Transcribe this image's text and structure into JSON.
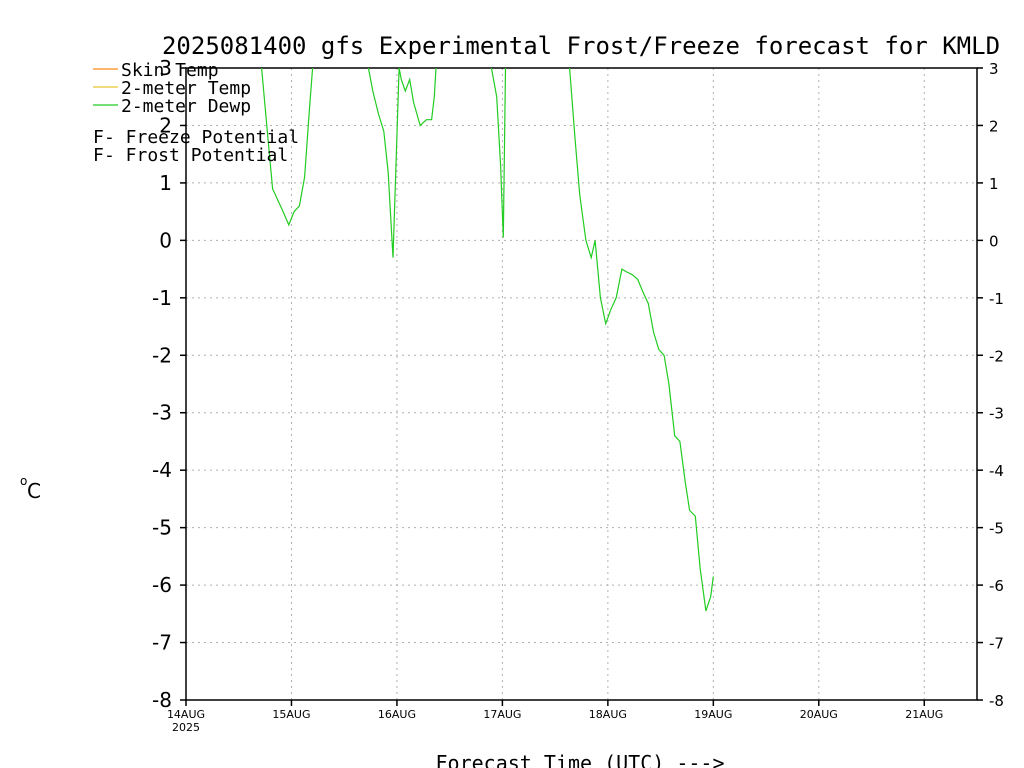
{
  "chart_data": {
    "type": "line",
    "title": "2025081400 gfs Experimental Frost/Freeze forecast for KMLD",
    "xlabel": "Forecast Time (UTC) --->",
    "ylabel": "°C",
    "ylabel_parts": {
      "superscript": "o",
      "unit": "C"
    },
    "ylim": [
      -8,
      3
    ],
    "xlim_hours": [
      0,
      180
    ],
    "x_units": "hours from 2025-08-14 00 UTC",
    "yticks": [
      "-8",
      "-7",
      "-6",
      "-5",
      "-4",
      "-3",
      "-2",
      "-1",
      "0",
      "1",
      "2",
      "3"
    ],
    "xticks": [
      {
        "hour": 0,
        "label": "14AUG",
        "sublabel": "2025"
      },
      {
        "hour": 24,
        "label": "15AUG"
      },
      {
        "hour": 48,
        "label": "16AUG"
      },
      {
        "hour": 72,
        "label": "17AUG"
      },
      {
        "hour": 96,
        "label": "18AUG"
      },
      {
        "hour": 120,
        "label": "19AUG"
      },
      {
        "hour": 144,
        "label": "20AUG"
      },
      {
        "hour": 168,
        "label": "21AUG"
      }
    ],
    "grid": true,
    "legend": {
      "placement": "top-left",
      "items": [
        {
          "label": "Skin Temp",
          "color": "#ff8c1a"
        },
        {
          "label": "2-meter Temp",
          "color": "#e8c832"
        },
        {
          "label": "2-meter Dewp",
          "color": "#22cc22"
        }
      ],
      "markers": [
        {
          "symbol": "F",
          "label": " - Freeze Potential",
          "color": "#cc3399"
        },
        {
          "symbol": "F",
          "label": " - Frost Potential",
          "color": "#3355ee"
        }
      ]
    },
    "series": [
      {
        "name": "2-meter Dewp",
        "color": "#22cc22",
        "x": [
          17.2,
          18.5,
          19.7,
          20.9,
          22.1,
          23.4,
          24.6,
          25.8,
          27.0,
          28.1,
          28.8
        ],
        "y": [
          3.0,
          1.9,
          0.9,
          0.7,
          0.5,
          0.27,
          0.5,
          0.6,
          1.1,
          2.3,
          3.0
        ],
        "segment": 1
      },
      {
        "name": "2-meter Dewp",
        "color": "#22cc22",
        "x": [
          41.5,
          42.5,
          43.8,
          45.0,
          46.0,
          47.1,
          47.7,
          48.5,
          49.0,
          49.9,
          50.9,
          51.8,
          53.3,
          54.7,
          55.9,
          56.5,
          56.9
        ],
        "y": [
          3.0,
          2.6,
          2.2,
          1.9,
          1.2,
          -0.3,
          1.1,
          3.0,
          2.8,
          2.6,
          2.8,
          2.4,
          2.0,
          2.1,
          2.1,
          2.5,
          3.0
        ],
        "segment": 2
      },
      {
        "name": "2-meter Dewp",
        "color": "#22cc22",
        "x": [
          69.5,
          70.7,
          71.6,
          72.2,
          72.7
        ],
        "y": [
          3.0,
          2.5,
          1.3,
          0.05,
          3.0
        ],
        "segment": 3
      },
      {
        "name": "2-meter Dewp",
        "color": "#22cc22",
        "x": [
          87.3,
          88.5,
          89.6,
          91.0,
          92.2,
          93.1,
          94.3,
          95.5,
          96.7,
          97.9,
          99.2,
          100.3,
          101.6,
          102.8,
          104.0,
          105.2,
          106.4,
          107.6,
          108.8,
          109.9,
          111.2,
          112.4,
          113.6,
          114.6,
          115.9,
          117.0,
          118.3,
          119.4,
          120.0
        ],
        "y": [
          3.0,
          1.8,
          0.8,
          0.0,
          -0.3,
          0.0,
          -1.0,
          -1.45,
          -1.2,
          -1.0,
          -0.5,
          -0.55,
          -0.6,
          -0.68,
          -0.9,
          -1.1,
          -1.6,
          -1.9,
          -2.0,
          -2.5,
          -3.4,
          -3.5,
          -4.2,
          -4.7,
          -4.8,
          -5.7,
          -6.45,
          -6.2,
          -5.85
        ],
        "segment": 4
      }
    ]
  }
}
